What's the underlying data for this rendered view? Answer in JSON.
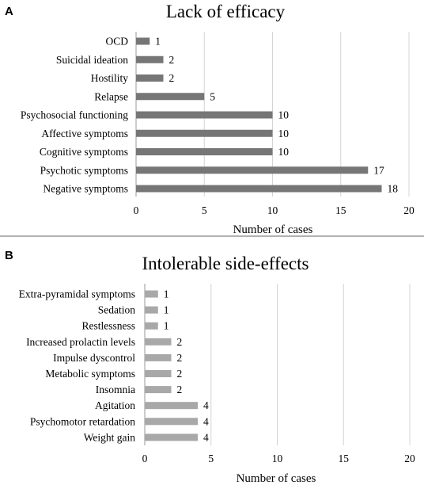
{
  "chart_data": [
    {
      "type": "bar",
      "orientation": "horizontal",
      "panel_label": "A",
      "title": "Lack of efficacy",
      "xlabel": "Number of cases",
      "ylabel": "",
      "xlim": [
        0,
        20
      ],
      "ticks": [
        0,
        5,
        10,
        15,
        20
      ],
      "grid": true,
      "bar_color": "#767676",
      "categories": [
        "OCD",
        "Suicidal ideation",
        "Hostility",
        "Relapse",
        "Psychosocial functioning",
        "Affective symptoms",
        "Cognitive symptoms",
        "Psychotic symptoms",
        "Negative symptoms"
      ],
      "values": [
        1,
        2,
        2,
        5,
        10,
        10,
        10,
        17,
        18
      ]
    },
    {
      "type": "bar",
      "orientation": "horizontal",
      "panel_label": "B",
      "title": "Intolerable side-effects",
      "xlabel": "Number of cases",
      "ylabel": "",
      "xlim": [
        0,
        20
      ],
      "ticks": [
        0,
        5,
        10,
        15,
        20
      ],
      "grid": true,
      "bar_color": "#a8a8a8",
      "categories": [
        "Extra-pyramidal symptoms",
        "Sedation",
        "Restlessness",
        "Increased prolactin levels",
        "Impulse dyscontrol",
        "Metabolic symptoms",
        "Insomnia",
        "Agitation",
        "Psychomotor retardation",
        "Weight gain"
      ],
      "values": [
        1,
        1,
        1,
        2,
        2,
        2,
        2,
        4,
        4,
        4
      ]
    }
  ]
}
